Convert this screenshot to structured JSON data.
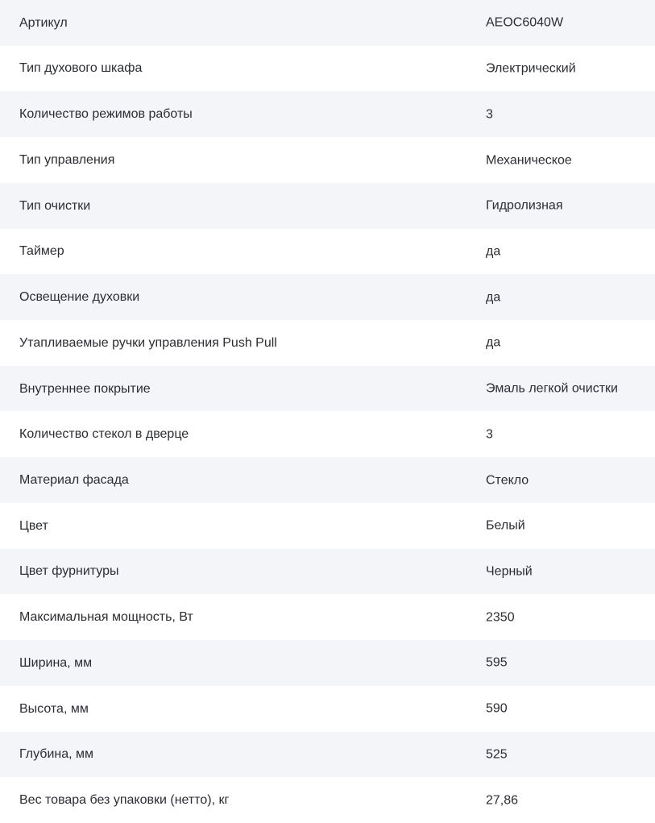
{
  "colors": {
    "stripe_background": "#f4f5f9",
    "row_background": "#ffffff",
    "text": "#2b2d33"
  },
  "specifications": {
    "rows": [
      {
        "label": "Артикул",
        "value": "AEOC6040W"
      },
      {
        "label": "Тип духового шкафа",
        "value": "Электрический"
      },
      {
        "label": "Количество режимов работы",
        "value": "3"
      },
      {
        "label": "Тип управления",
        "value": "Механическое"
      },
      {
        "label": "Тип очистки",
        "value": "Гидролизная"
      },
      {
        "label": "Таймер",
        "value": "да"
      },
      {
        "label": "Освещение духовки",
        "value": "да"
      },
      {
        "label": "Утапливаемые ручки управления Push Pull",
        "value": "да"
      },
      {
        "label": "Внутреннее покрытие",
        "value": "Эмаль легкой очистки"
      },
      {
        "label": "Количество стекол в дверце",
        "value": "3"
      },
      {
        "label": "Материал фасада",
        "value": "Стекло"
      },
      {
        "label": "Цвет",
        "value": "Белый"
      },
      {
        "label": "Цвет фурнитуры",
        "value": "Черный"
      },
      {
        "label": "Максимальная мощность, Вт",
        "value": "2350"
      },
      {
        "label": "Ширина, мм",
        "value": "595"
      },
      {
        "label": "Высота, мм",
        "value": "590"
      },
      {
        "label": "Глубина, мм",
        "value": "525"
      },
      {
        "label": "Вес товара без упаковки (нетто), кг",
        "value": "27,86"
      }
    ]
  }
}
